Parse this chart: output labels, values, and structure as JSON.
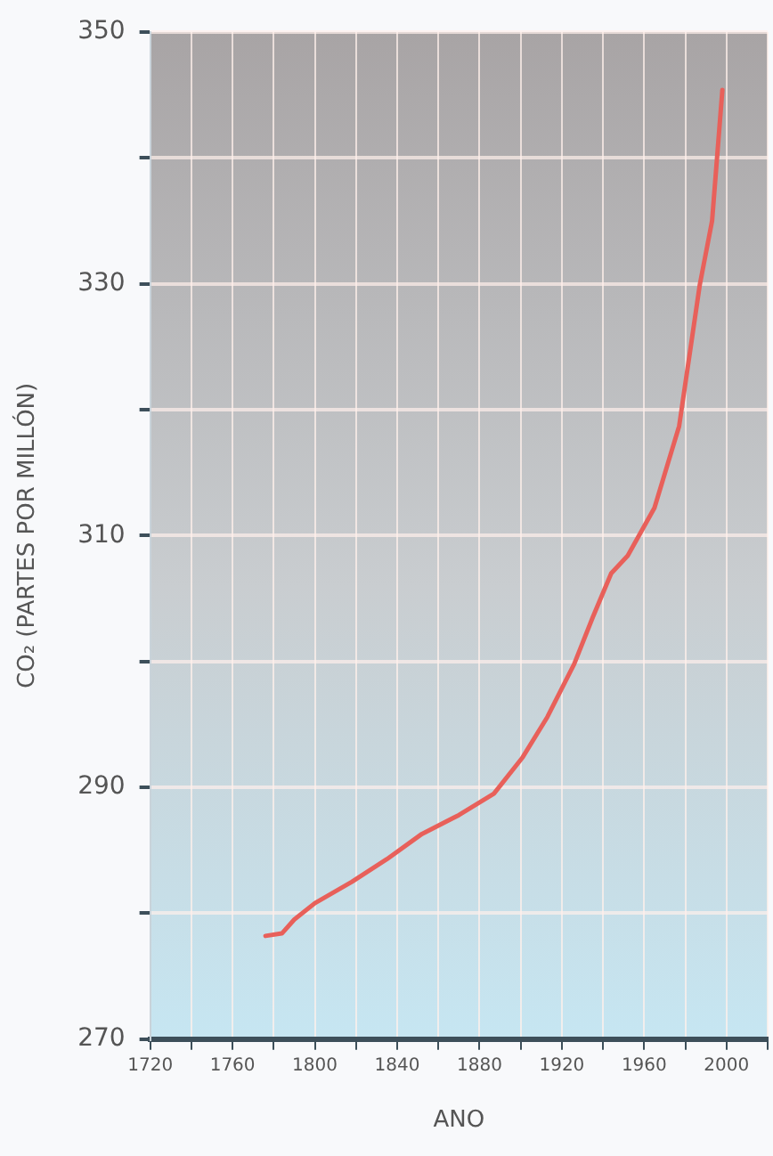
{
  "chart_data": {
    "type": "line",
    "xlabel": "ANO",
    "ylabel": "CO₂ (PARTES POR MILLÓN)",
    "x": [
      1776,
      1784,
      1790,
      1800,
      1818,
      1835,
      1852,
      1870,
      1887,
      1901,
      1913,
      1926,
      1935,
      1944,
      1952,
      1965,
      1977,
      1987,
      1993,
      1998
    ],
    "series": [
      {
        "color": "#e8605a",
        "values": [
          278.2,
          278.4,
          279.5,
          280.8,
          282.5,
          284.3,
          286.3,
          287.8,
          289.5,
          292.4,
          295.6,
          299.8,
          303.5,
          307,
          308.4,
          312.2,
          318.7,
          329.9,
          335,
          345.4
        ]
      }
    ],
    "xlim": [
      1720,
      2020
    ],
    "xticks": [
      1720,
      {
        "value": 1740,
        "label": null
      },
      1760,
      {
        "value": 1780,
        "label": null
      },
      1800,
      {
        "value": 1820,
        "label": null
      },
      1840,
      {
        "value": 1860,
        "label": null
      },
      1880,
      {
        "value": 1900,
        "label": null
      },
      1920,
      {
        "value": 1940,
        "label": null
      },
      1960,
      {
        "value": 1980,
        "label": null
      },
      2000,
      {
        "value": 2020,
        "label": null
      }
    ],
    "ylim": [
      270,
      350
    ],
    "yticks": [
      270,
      {
        "value": 280,
        "label": null
      },
      290,
      {
        "value": 300,
        "label": null
      },
      310,
      {
        "value": 320,
        "label": null
      },
      330,
      {
        "value": 340,
        "label": null
      },
      350
    ],
    "grid": true,
    "legend": false,
    "marker": "none",
    "line_style": "solid"
  }
}
